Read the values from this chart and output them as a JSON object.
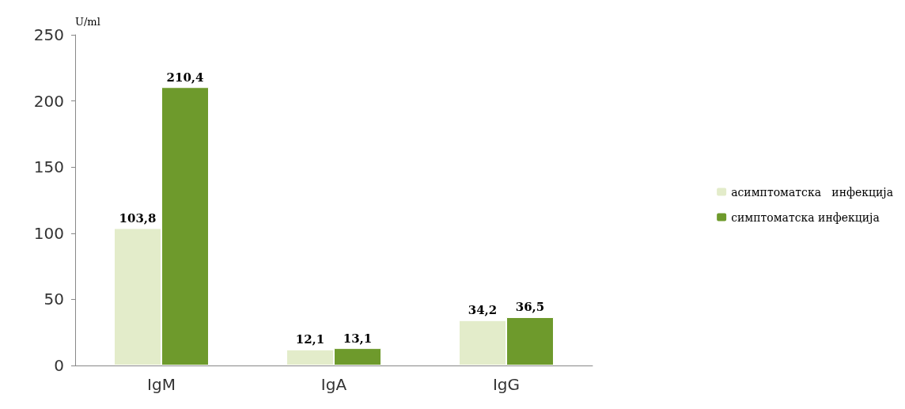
{
  "chart_data": {
    "type": "bar",
    "ylabel": "U/ml",
    "categories": [
      "IgM",
      "IgA",
      "IgG"
    ],
    "series": [
      {
        "name": "асимптоматска   инфекција",
        "color": "#e3ecca",
        "values": [
          103.8,
          12.1,
          34.2
        ],
        "value_labels": [
          "103,8",
          "12,1",
          "34,2"
        ]
      },
      {
        "name": "симптоматска инфекција",
        "color": "#6e9a2c",
        "values": [
          210.4,
          13.1,
          36.5
        ],
        "value_labels": [
          "210,4",
          "13,1",
          "36,5"
        ]
      }
    ],
    "ylim": [
      0,
      250
    ],
    "yticks": [
      0,
      50,
      100,
      150,
      200,
      250
    ],
    "grid": false,
    "legend": "right"
  }
}
